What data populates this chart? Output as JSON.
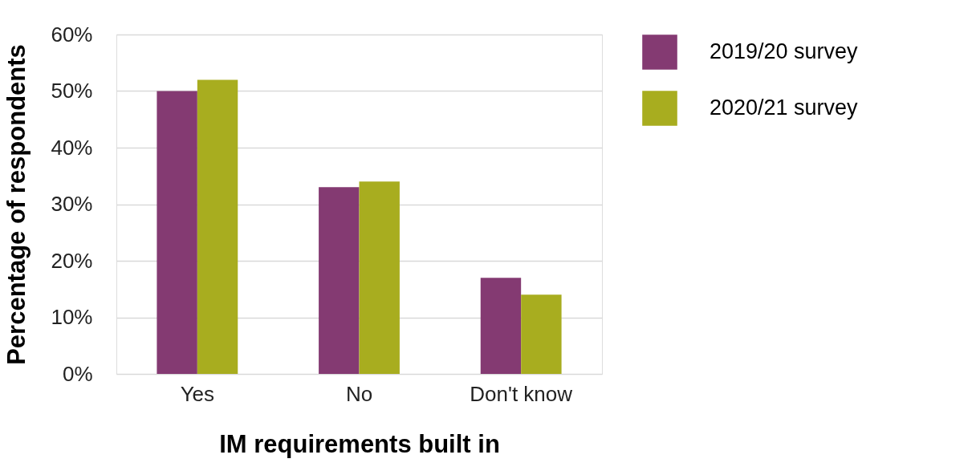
{
  "chart_data": {
    "type": "bar",
    "xlabel": "IM requirements built in",
    "ylabel": "Percentage of respondents",
    "categories": [
      "Yes",
      "No",
      "Don't know"
    ],
    "series": [
      {
        "name": "2019/20 survey",
        "color": "#843a72",
        "values": [
          50,
          33,
          17
        ]
      },
      {
        "name": "2020/21 survey",
        "color": "#a8ad1f",
        "values": [
          52,
          34,
          14
        ]
      }
    ],
    "ylim": [
      0,
      60
    ],
    "yticks": [
      {
        "value": 0,
        "label": "0%"
      },
      {
        "value": 10,
        "label": "10%"
      },
      {
        "value": 20,
        "label": "20%"
      },
      {
        "value": 30,
        "label": "30%"
      },
      {
        "value": 40,
        "label": "40%"
      },
      {
        "value": 50,
        "label": "50%"
      },
      {
        "value": 60,
        "label": "60%"
      }
    ],
    "grid": "y",
    "legend": "right"
  }
}
